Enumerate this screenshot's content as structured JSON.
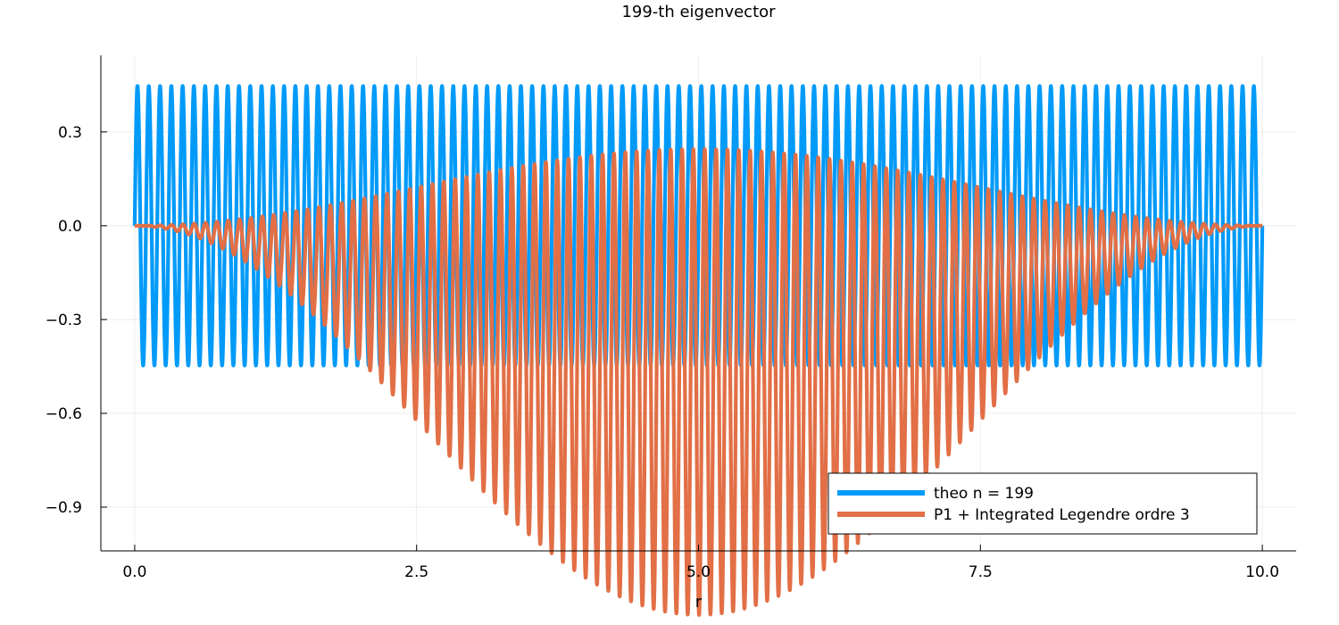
{
  "chart_data": {
    "type": "line",
    "title": "199-th eigenvector",
    "xlabel": "r",
    "ylabel": "",
    "xlim": [
      -0.3,
      10.3
    ],
    "ylim": [
      -1.04,
      0.545
    ],
    "xticks": [
      0.0,
      2.5,
      5.0,
      7.5,
      10.0
    ],
    "xtick_labels": [
      "0.0",
      "2.5",
      "5.0",
      "7.5",
      "10.0"
    ],
    "yticks": [
      -0.9,
      -0.6,
      -0.3,
      0.0,
      0.3
    ],
    "ytick_labels": [
      "−0.9",
      "−0.6",
      "−0.3",
      "0.0",
      "0.3"
    ],
    "grid": true,
    "legend_position": "bottom-right",
    "series": [
      {
        "name": "theo n = 199",
        "color": "#009af9",
        "function": "0.447 * sin(2*pi*100*x/10)",
        "x_range": [
          0,
          10
        ],
        "amplitude": 0.447,
        "cycles": 100
      },
      {
        "name": "P1 + Integrated Legendre ordre 3",
        "color": "#e26f46",
        "function": "oscillation with envelope 0.745*(1 - cos(2*pi*x/10)) - offset, period ~0.1006",
        "x_range": [
          0,
          10
        ],
        "amplitude": 0.745,
        "cycles": 99.4
      }
    ]
  }
}
